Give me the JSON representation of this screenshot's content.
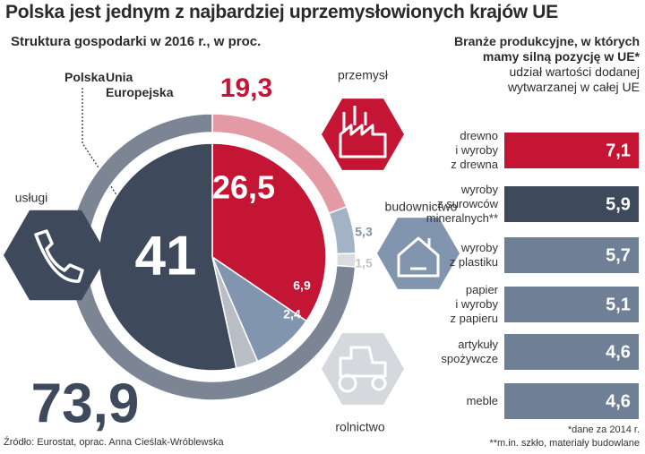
{
  "chart_data": [
    {
      "type": "pie",
      "title": "Polska jest jednym z najbardziej uprzemysłowionych krajów UE",
      "subtitle": "Struktura gospodarki w 2016 r., w proc.",
      "source": "Źródło: Eurostat, oprac. Anna Cieślak-Wróblewska",
      "categories": [
        "przemysł",
        "budownictwo",
        "rolnictwo",
        "usługi"
      ],
      "series": [
        {
          "name": "Polska",
          "values": [
            26.5,
            6.9,
            2.4,
            41
          ],
          "value_labels": [
            "26,5",
            "6,9",
            "2,4",
            "41"
          ],
          "colors": [
            "#c41535",
            "#8196ae",
            "#b9bec6",
            "#3e4a5c"
          ]
        },
        {
          "name": "Unia\nEuropejska",
          "values": [
            19.3,
            5.3,
            1.5,
            73.9
          ],
          "value_labels": [
            "19,3",
            "5,3",
            "1,5",
            "73,9"
          ],
          "colors": [
            "#e39aa4",
            "#a3b2c4",
            "#d9dce0",
            "#7b8594"
          ]
        }
      ]
    },
    {
      "type": "bar",
      "title": "Branże produkcyjne, w których\nmamy silną pozycję w UE*",
      "subtitle": "udział wartości dodanej\nwytwarzanej w całej UE",
      "categories": [
        "drewno\ni wyroby\nz drewna",
        "wyroby\nz surowców\nmineralnych**",
        "wyroby\nz plastiku",
        "papier\ni wyroby\nz papieru",
        "artykuły\nspożywcze",
        "meble"
      ],
      "values": [
        7.1,
        5.9,
        5.7,
        5.1,
        4.6,
        4.6
      ],
      "value_labels": [
        "7,1",
        "5,9",
        "5,7",
        "5,1",
        "4,6",
        "4,6"
      ],
      "colors": [
        "#c41535",
        "#3e4a5c",
        "#6f7f95",
        "#6f7f95",
        "#6f7f95",
        "#6f7f95"
      ],
      "notes": [
        "*dane za 2014 r.",
        "**m.in. szkło, materiały budowlane"
      ]
    }
  ]
}
